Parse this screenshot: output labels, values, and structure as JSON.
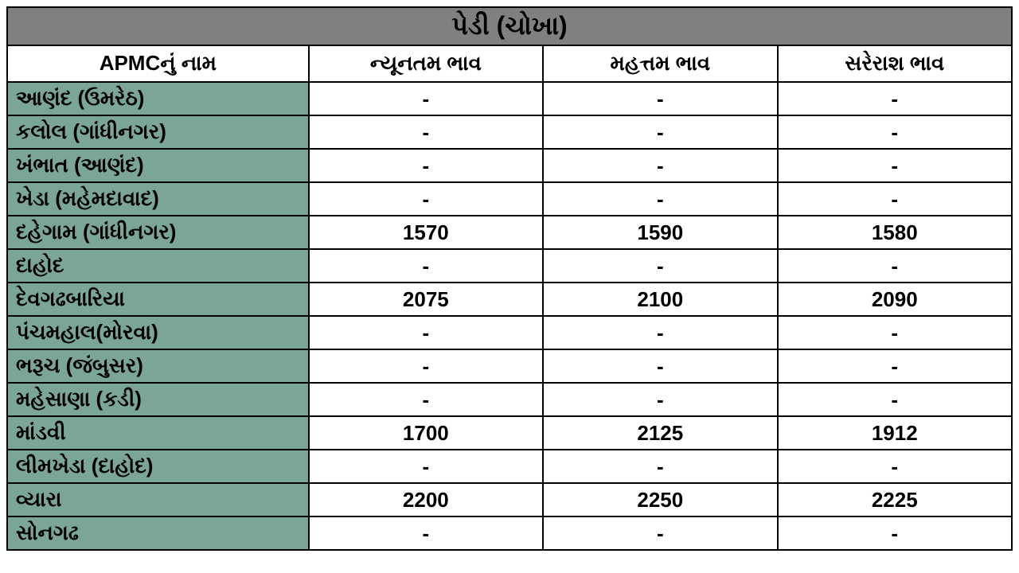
{
  "table": {
    "title": "પેડી (ચોખા)",
    "columns": [
      "APMCનું નામ",
      "ન્યૂનતમ ભાવ",
      "મહત્તમ ભાવ",
      "સરેરાશ ભાવ"
    ],
    "rows": [
      {
        "name": "આણંદ (ઉમરેઠ)",
        "min": "-",
        "max": "-",
        "avg": "-"
      },
      {
        "name": "કલોલ (ગાંધીનગર)",
        "min": "-",
        "max": "-",
        "avg": "-"
      },
      {
        "name": "ખંભાત (આણંદ)",
        "min": "-",
        "max": "-",
        "avg": "-"
      },
      {
        "name": "ખેડા (મહેમદાવાદ)",
        "min": "-",
        "max": "-",
        "avg": "-"
      },
      {
        "name": "દહેગામ (ગાંધીનગર)",
        "min": "1570",
        "max": "1590",
        "avg": "1580"
      },
      {
        "name": "દાહોદ",
        "min": "-",
        "max": "-",
        "avg": "-"
      },
      {
        "name": "દેવગઢબારિયા",
        "min": "2075",
        "max": "2100",
        "avg": "2090"
      },
      {
        "name": "પંચમહાલ(મોરવા)",
        "min": "-",
        "max": "-",
        "avg": "-"
      },
      {
        "name": "ભરૂચ (જંબુસર)",
        "min": "-",
        "max": "-",
        "avg": "-"
      },
      {
        "name": "મહેસાણા (કડી)",
        "min": "-",
        "max": "-",
        "avg": "-"
      },
      {
        "name": "માંડવી",
        "min": "1700",
        "max": "2125",
        "avg": "1912"
      },
      {
        "name": "લીમખેડા (દાહોદ)",
        "min": "-",
        "max": "-",
        "avg": "-"
      },
      {
        "name": "વ્યારા",
        "min": "2200",
        "max": "2250",
        "avg": "2225"
      },
      {
        "name": "સોનગઢ",
        "min": "-",
        "max": "-",
        "avg": "-"
      }
    ],
    "colors": {
      "title_bg": "#808080",
      "header_bg": "#ffffff",
      "name_bg": "#7ba599",
      "cell_bg": "#ffffff",
      "border": "#000000",
      "text": "#000000"
    },
    "font_sizes": {
      "title": 32,
      "header": 26,
      "data": 26
    }
  }
}
